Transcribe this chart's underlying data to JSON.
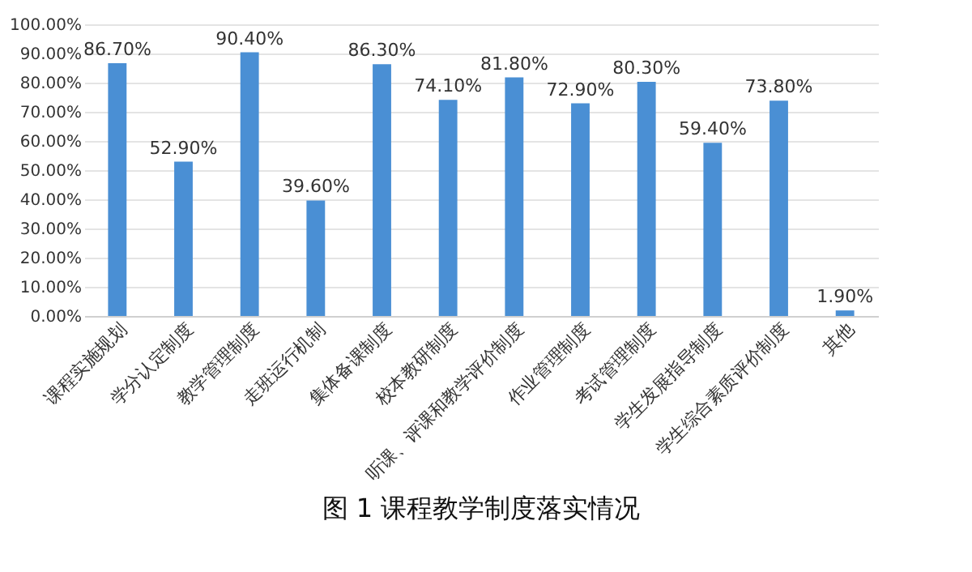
{
  "chart_data": {
    "type": "bar",
    "title": "图 1 课程教学制度落实情况",
    "categories": [
      "课程实施规划",
      "学分认定制度",
      "教学管理制度",
      "走班运行机制",
      "集体备课制度",
      "校本教研制度",
      "听课、评课和教学评价制度",
      "作业管理制度",
      "考试管理制度",
      "学生发展指导制度",
      "学生综合素质评价制度",
      "其他"
    ],
    "values": [
      86.7,
      52.9,
      90.4,
      39.6,
      86.3,
      74.1,
      81.8,
      72.9,
      80.3,
      59.4,
      73.8,
      1.9
    ],
    "value_labels": [
      "86.70%",
      "52.90%",
      "90.40%",
      "39.60%",
      "86.30%",
      "74.10%",
      "81.80%",
      "72.90%",
      "80.30%",
      "59.40%",
      "73.80%",
      "1.90%"
    ],
    "color": "#4a8fd4",
    "ylim": [
      0,
      100
    ],
    "yticks": [
      {
        "value": 0,
        "label": "0.00%"
      },
      {
        "value": 10,
        "label": "10.00%"
      },
      {
        "value": 20,
        "label": "20.00%"
      },
      {
        "value": 30,
        "label": "30.00%"
      },
      {
        "value": 40,
        "label": "40.00%"
      },
      {
        "value": 50,
        "label": "50.00%"
      },
      {
        "value": 60,
        "label": "60.00%"
      },
      {
        "value": 70,
        "label": "70.00%"
      },
      {
        "value": 80,
        "label": "80.00%"
      },
      {
        "value": 90,
        "label": "90.00%"
      },
      {
        "value": 100,
        "label": "100.00%"
      }
    ],
    "grid": "y"
  }
}
